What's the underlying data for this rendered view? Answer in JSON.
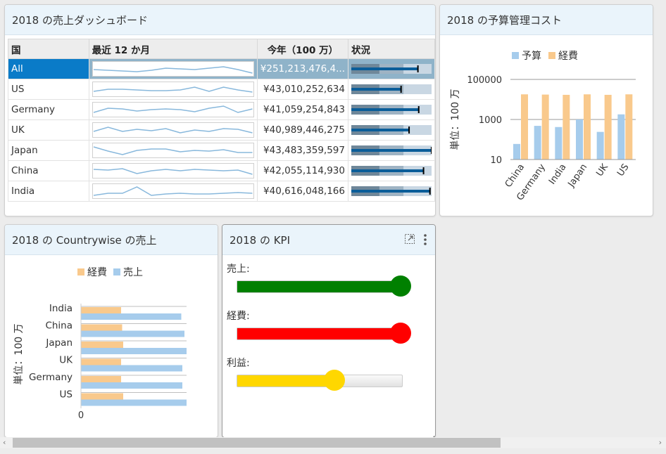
{
  "sales_card": {
    "title": "2018 の売上ダッシュボード",
    "columns": [
      "国",
      "最近 12 か月",
      "今年（100 万）",
      "状況"
    ],
    "rows": [
      {
        "name": "All",
        "value": "¥251,213,476,4..."
      },
      {
        "name": "US",
        "value": "¥43,010,252,634"
      },
      {
        "name": "Germany",
        "value": "¥41,059,254,843"
      },
      {
        "name": "UK",
        "value": "¥40,989,446,275"
      },
      {
        "name": "Japan",
        "value": "¥43,483,359,597"
      },
      {
        "name": "China",
        "value": "¥42,055,114,930"
      },
      {
        "name": "India",
        "value": "¥40,616,048,166"
      }
    ]
  },
  "budget_card": {
    "title": "2018 の予算管理コスト"
  },
  "country_card": {
    "title": "2018 の Countrywise の売上"
  },
  "kpi_card": {
    "title": "2018 の KPI",
    "items": [
      {
        "label": "売上:",
        "fraction": 1.0,
        "color": "#008000"
      },
      {
        "label": "経費:",
        "fraction": 1.0,
        "color": "#ff0000"
      },
      {
        "label": "利益:",
        "fraction": 0.6,
        "color": "#ffd700"
      }
    ]
  },
  "chart_data": [
    {
      "type": "bar",
      "scale": "log",
      "categories": [
        "China",
        "Germany",
        "India",
        "Japan",
        "UK",
        "US"
      ],
      "series": [
        {
          "name": "予算",
          "values": [
            60,
            480,
            420,
            1000,
            240,
            1800
          ],
          "color": "#a6ccec"
        },
        {
          "name": "経費",
          "values": [
            18000,
            17500,
            17000,
            18000,
            17000,
            18000
          ],
          "color": "#f9c98c"
        }
      ],
      "yticks": [
        "10",
        "1000",
        "100000"
      ],
      "ylabel": "単位：100 万",
      "legend": "top"
    },
    {
      "type": "bar",
      "orientation": "horizontal",
      "categories": [
        "India",
        "China",
        "Japan",
        "UK",
        "Germany",
        "US"
      ],
      "series": [
        {
          "name": "経費",
          "fraction": [
            0.38,
            0.39,
            0.4,
            0.38,
            0.38,
            0.4
          ],
          "color": "#f9c98c"
        },
        {
          "name": "売上",
          "fraction": [
            0.95,
            0.98,
            1.0,
            0.96,
            0.96,
            1.0
          ],
          "color": "#a6ccec"
        }
      ],
      "xticks": [
        "0"
      ],
      "ylabel": "単位：100 万",
      "legend": "top"
    }
  ]
}
